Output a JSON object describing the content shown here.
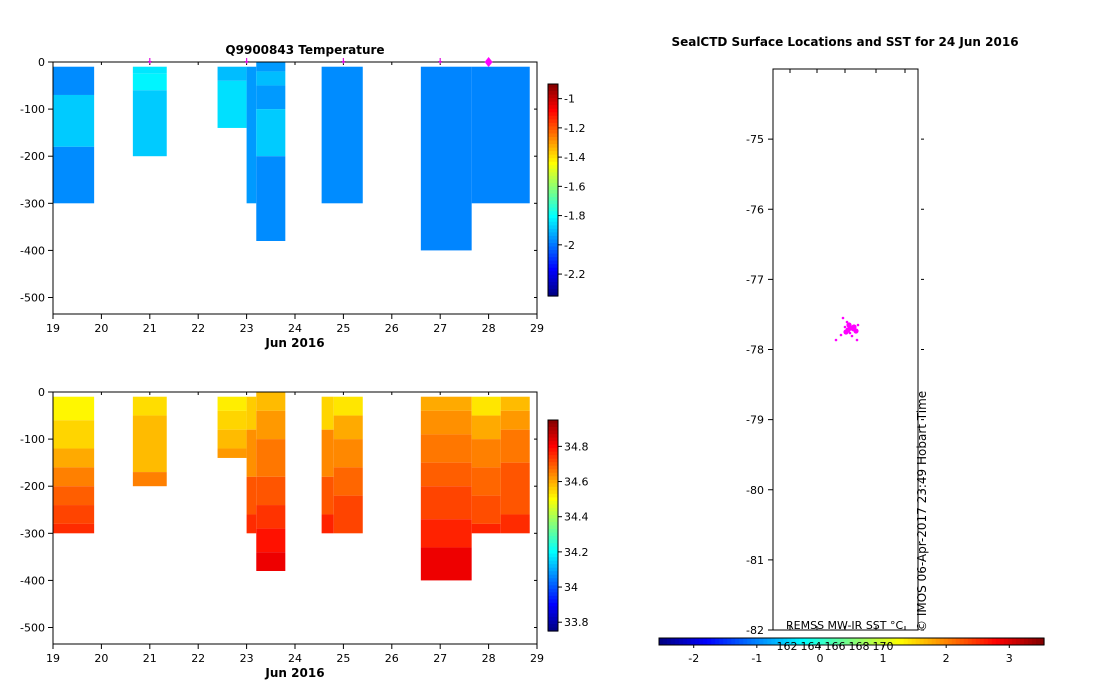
{
  "chart_data": [
    {
      "type": "heatmap",
      "title": "Q9900843  Temperature",
      "xlabel": "Jun 2016",
      "x_ticks": [
        "19",
        "20",
        "21",
        "22",
        "23",
        "24",
        "25",
        "26",
        "27",
        "28",
        "29"
      ],
      "xlim": [
        19,
        29
      ],
      "y_ticks": [
        "0",
        "-100",
        "-200",
        "-300",
        "-400",
        "-500"
      ],
      "ylim": [
        -535,
        0
      ],
      "colorbar": {
        "ticks": [
          "-1",
          "-1.2",
          "-1.4",
          "-1.6",
          "-1.8",
          "-2",
          "-2.2"
        ],
        "range": [
          -2.35,
          -0.9
        ]
      },
      "profile_markers_day": [
        21,
        23,
        25,
        27,
        28
      ],
      "highlight_marker_day": 28,
      "profiles": [
        {
          "x0": 19.0,
          "x1": 19.85,
          "depth": 300,
          "cells": [
            {
              "top": 10,
              "bot": 70,
              "value": -1.97
            },
            {
              "top": 70,
              "bot": 180,
              "value": -1.88
            },
            {
              "top": 180,
              "bot": 300,
              "value": -1.97
            }
          ]
        },
        {
          "x0": 20.65,
          "x1": 21.35,
          "depth": 200,
          "cells": [
            {
              "top": 10,
              "bot": 25,
              "value": -1.84
            },
            {
              "top": 25,
              "bot": 60,
              "value": -1.82
            },
            {
              "top": 60,
              "bot": 200,
              "value": -1.88
            }
          ]
        },
        {
          "x0": 22.4,
          "x1": 23.0,
          "depth": 140,
          "cells": [
            {
              "top": 10,
              "bot": 40,
              "value": -1.9
            },
            {
              "top": 40,
              "bot": 140,
              "value": -1.85
            }
          ]
        },
        {
          "x0": 23.0,
          "x1": 23.2,
          "depth": 300,
          "cells": [
            {
              "top": 10,
              "bot": 300,
              "value": -1.95
            }
          ]
        },
        {
          "x0": 23.2,
          "x1": 23.8,
          "depth": 380,
          "cells": [
            {
              "top": 0,
              "bot": 20,
              "value": -1.95
            },
            {
              "top": 20,
              "bot": 50,
              "value": -1.9
            },
            {
              "top": 50,
              "bot": 100,
              "value": -1.95
            },
            {
              "top": 100,
              "bot": 200,
              "value": -1.88
            },
            {
              "top": 200,
              "bot": 380,
              "value": -1.97
            }
          ]
        },
        {
          "x0": 24.55,
          "x1": 25.4,
          "depth": 300,
          "cells": [
            {
              "top": 10,
              "bot": 300,
              "value": -1.97
            }
          ]
        },
        {
          "x0": 26.6,
          "x1": 27.65,
          "depth": 400,
          "cells": [
            {
              "top": 10,
              "bot": 400,
              "value": -1.98
            }
          ]
        },
        {
          "x0": 27.65,
          "x1": 28.85,
          "depth": 300,
          "cells": [
            {
              "top": 10,
              "bot": 300,
              "value": -1.98
            }
          ]
        }
      ]
    },
    {
      "type": "heatmap",
      "title": "",
      "xlabel": "Jun 2016",
      "x_ticks": [
        "19",
        "20",
        "21",
        "22",
        "23",
        "24",
        "25",
        "26",
        "27",
        "28",
        "29"
      ],
      "xlim": [
        19,
        29
      ],
      "y_ticks": [
        "0",
        "-100",
        "-200",
        "-300",
        "-400",
        "-500"
      ],
      "ylim": [
        -535,
        0
      ],
      "colorbar": {
        "ticks": [
          "34.8",
          "34.6",
          "34.4",
          "34.2",
          "34",
          "33.8"
        ],
        "range": [
          33.75,
          34.95
        ]
      },
      "profiles": [
        {
          "x0": 19.0,
          "x1": 19.85,
          "depth": 300,
          "cells": [
            {
              "top": 10,
              "bot": 60,
              "value": 34.51
            },
            {
              "top": 60,
              "bot": 120,
              "value": 34.55
            },
            {
              "top": 120,
              "bot": 160,
              "value": 34.6
            },
            {
              "top": 160,
              "bot": 200,
              "value": 34.65
            },
            {
              "top": 200,
              "bot": 240,
              "value": 34.69
            },
            {
              "top": 240,
              "bot": 280,
              "value": 34.72
            },
            {
              "top": 280,
              "bot": 300,
              "value": 34.75
            }
          ]
        },
        {
          "x0": 20.65,
          "x1": 21.35,
          "depth": 200,
          "cells": [
            {
              "top": 10,
              "bot": 50,
              "value": 34.54
            },
            {
              "top": 50,
              "bot": 170,
              "value": 34.58
            },
            {
              "top": 170,
              "bot": 200,
              "value": 34.65
            }
          ]
        },
        {
          "x0": 22.4,
          "x1": 23.0,
          "depth": 140,
          "cells": [
            {
              "top": 10,
              "bot": 40,
              "value": 34.52
            },
            {
              "top": 40,
              "bot": 80,
              "value": 34.55
            },
            {
              "top": 80,
              "bot": 120,
              "value": 34.58
            },
            {
              "top": 120,
              "bot": 140,
              "value": 34.62
            }
          ]
        },
        {
          "x0": 23.0,
          "x1": 23.2,
          "depth": 300,
          "cells": [
            {
              "top": 10,
              "bot": 80,
              "value": 34.56
            },
            {
              "top": 80,
              "bot": 180,
              "value": 34.63
            },
            {
              "top": 180,
              "bot": 260,
              "value": 34.7
            },
            {
              "top": 260,
              "bot": 300,
              "value": 34.75
            }
          ]
        },
        {
          "x0": 23.2,
          "x1": 23.8,
          "depth": 380,
          "cells": [
            {
              "top": 0,
              "bot": 40,
              "value": 34.58
            },
            {
              "top": 40,
              "bot": 100,
              "value": 34.62
            },
            {
              "top": 100,
              "bot": 180,
              "value": 34.66
            },
            {
              "top": 180,
              "bot": 240,
              "value": 34.7
            },
            {
              "top": 240,
              "bot": 290,
              "value": 34.74
            },
            {
              "top": 290,
              "bot": 340,
              "value": 34.78
            },
            {
              "top": 340,
              "bot": 380,
              "value": 34.82
            }
          ]
        },
        {
          "x0": 24.55,
          "x1": 24.8,
          "depth": 300,
          "cells": [
            {
              "top": 10,
              "bot": 80,
              "value": 34.55
            },
            {
              "top": 80,
              "bot": 180,
              "value": 34.64
            },
            {
              "top": 180,
              "bot": 260,
              "value": 34.7
            },
            {
              "top": 260,
              "bot": 300,
              "value": 34.76
            }
          ]
        },
        {
          "x0": 24.8,
          "x1": 25.4,
          "depth": 300,
          "cells": [
            {
              "top": 10,
              "bot": 50,
              "value": 34.53
            },
            {
              "top": 50,
              "bot": 100,
              "value": 34.6
            },
            {
              "top": 100,
              "bot": 160,
              "value": 34.64
            },
            {
              "top": 160,
              "bot": 220,
              "value": 34.68
            },
            {
              "top": 220,
              "bot": 300,
              "value": 34.72
            }
          ]
        },
        {
          "x0": 26.6,
          "x1": 27.65,
          "depth": 400,
          "cells": [
            {
              "top": 10,
              "bot": 40,
              "value": 34.6
            },
            {
              "top": 40,
              "bot": 90,
              "value": 34.63
            },
            {
              "top": 90,
              "bot": 150,
              "value": 34.66
            },
            {
              "top": 150,
              "bot": 200,
              "value": 34.69
            },
            {
              "top": 200,
              "bot": 270,
              "value": 34.72
            },
            {
              "top": 270,
              "bot": 330,
              "value": 34.76
            },
            {
              "top": 330,
              "bot": 400,
              "value": 34.82
            }
          ]
        },
        {
          "x0": 27.65,
          "x1": 28.25,
          "depth": 300,
          "cells": [
            {
              "top": 10,
              "bot": 50,
              "value": 34.53
            },
            {
              "top": 50,
              "bot": 100,
              "value": 34.6
            },
            {
              "top": 100,
              "bot": 160,
              "value": 34.65
            },
            {
              "top": 160,
              "bot": 220,
              "value": 34.68
            },
            {
              "top": 220,
              "bot": 280,
              "value": 34.71
            },
            {
              "top": 280,
              "bot": 300,
              "value": 34.76
            }
          ]
        },
        {
          "x0": 28.25,
          "x1": 28.85,
          "depth": 300,
          "cells": [
            {
              "top": 10,
              "bot": 40,
              "value": 34.58
            },
            {
              "top": 40,
              "bot": 80,
              "value": 34.62
            },
            {
              "top": 80,
              "bot": 150,
              "value": 34.66
            },
            {
              "top": 150,
              "bot": 260,
              "value": 34.7
            },
            {
              "top": 260,
              "bot": 300,
              "value": 34.75
            }
          ]
        }
      ]
    },
    {
      "type": "scatter",
      "title": "SealCTD Surface Locations and SST for 24 Jun 2016",
      "y_ticks": [
        "-75",
        "-76",
        "-77",
        "-78",
        "-79",
        "-80",
        "-81",
        "-82"
      ],
      "ylim": [
        -82,
        -74
      ]
    }
  ],
  "sst_bar": {
    "label": "REMSS MW-IR SST °C",
    "ticks": [
      "-2",
      "-1",
      "0",
      "1",
      "2",
      "3"
    ],
    "overlay_ticks": [
      "162",
      "164",
      "166",
      "168",
      "170"
    ]
  },
  "credit": "© IMOS 06-Apr-2017 23:49 Hobart Time",
  "colors": {
    "marker": "#e010e0",
    "highlight": "#ff00ff"
  }
}
